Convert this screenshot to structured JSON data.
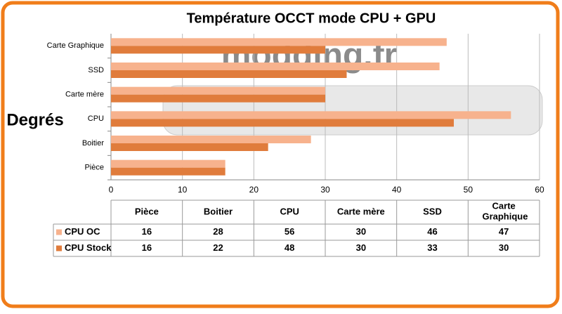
{
  "chart_data": {
    "type": "bar",
    "orientation": "horizontal",
    "title": "Température OCCT mode CPU + GPU",
    "y_label": "Degrés",
    "watermark": "modding.fr",
    "categories": [
      "Pièce",
      "Boitier",
      "CPU",
      "Carte mère",
      "SSD",
      "Carte Graphique"
    ],
    "series": [
      {
        "name": "CPU OC",
        "color": "#f7b28d",
        "values": [
          16,
          28,
          56,
          30,
          46,
          47
        ]
      },
      {
        "name": "CPU Stock",
        "color": "#e07c3c",
        "values": [
          16,
          22,
          48,
          30,
          33,
          30
        ]
      }
    ],
    "xlim": [
      0,
      60
    ],
    "xticks": [
      0,
      10,
      20,
      30,
      40,
      50,
      60
    ],
    "grid": true,
    "data_table": true
  }
}
